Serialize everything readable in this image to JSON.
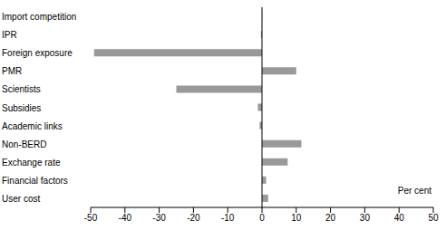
{
  "chart_data": {
    "type": "bar",
    "orientation": "horizontal",
    "categories": [
      "Import competition",
      "IPR",
      "Foreign exposure",
      "PMR",
      "Scientists",
      "Subsidies",
      "Academic links",
      "Non-BERD",
      "Exchange rate",
      "Financial factors",
      "User cost"
    ],
    "values": [
      0.1,
      -0.3,
      -49,
      10,
      -25,
      -1.2,
      -0.7,
      11.5,
      7.5,
      1.2,
      1.8
    ],
    "color": "#999999",
    "xlim": [
      -50,
      50
    ],
    "xticks": [
      -50,
      -40,
      -30,
      -20,
      -10,
      0,
      10,
      20,
      30,
      40,
      50
    ],
    "grid": false,
    "annotations": [
      "Per cent"
    ]
  }
}
